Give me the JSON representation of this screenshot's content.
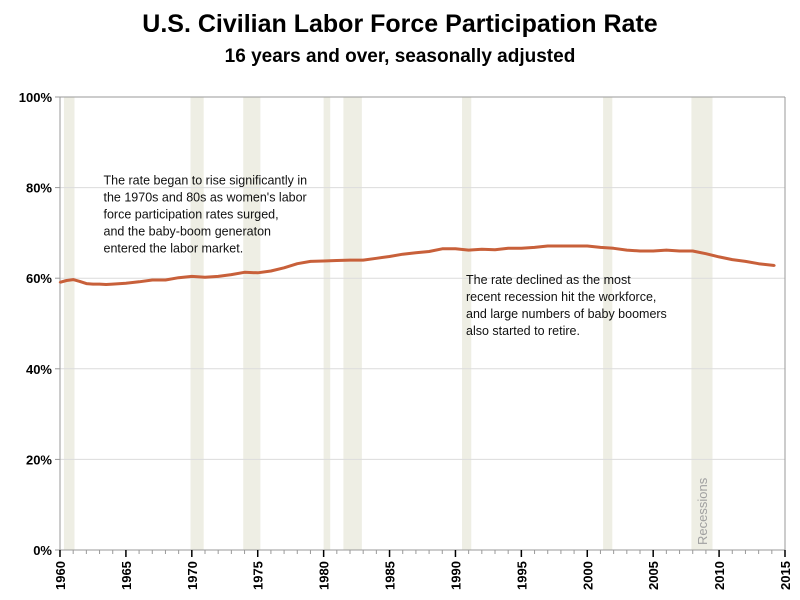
{
  "chart_data": {
    "type": "line",
    "title": "U.S. Civilian Labor Force Participation Rate",
    "subtitle": "16 years and over, seasonally adjusted",
    "xlabel": "",
    "ylabel": "",
    "xlim": [
      1960,
      2015
    ],
    "ylim": [
      0,
      100
    ],
    "grid": true,
    "y_ticks": [
      0,
      20,
      40,
      60,
      80,
      100
    ],
    "y_tick_labels": [
      "0%",
      "20%",
      "40%",
      "60%",
      "80%",
      "100%"
    ],
    "x_ticks": [
      1960,
      1965,
      1970,
      1975,
      1980,
      1985,
      1990,
      1995,
      2000,
      2005,
      2010,
      2015
    ],
    "x_tick_labels": [
      "1960",
      "1965",
      "1970",
      "1975",
      "1980",
      "1985",
      "1990",
      "1995",
      "2000",
      "2005",
      "2010",
      "2015"
    ],
    "line_color": "#c8603a",
    "recession_color": "#eeeee4",
    "series": [
      {
        "name": "Participation Rate",
        "x": [
          1960.0,
          1960.5,
          1961.0,
          1961.5,
          1962.0,
          1962.5,
          1963.0,
          1963.5,
          1964.0,
          1965.0,
          1966.0,
          1967.0,
          1968.0,
          1969.0,
          1970.0,
          1971.0,
          1972.0,
          1973.0,
          1974.0,
          1975.0,
          1976.0,
          1977.0,
          1978.0,
          1979.0,
          1980.0,
          1981.0,
          1982.0,
          1983.0,
          1984.0,
          1985.0,
          1986.0,
          1987.0,
          1988.0,
          1989.0,
          1990.0,
          1991.0,
          1992.0,
          1993.0,
          1994.0,
          1995.0,
          1996.0,
          1997.0,
          1998.0,
          1999.0,
          2000.0,
          2001.0,
          2002.0,
          2003.0,
          2004.0,
          2005.0,
          2006.0,
          2007.0,
          2008.0,
          2009.0,
          2010.0,
          2011.0,
          2012.0,
          2013.0,
          2014.2
        ],
        "y": [
          59.1,
          59.5,
          59.7,
          59.3,
          58.8,
          58.7,
          58.7,
          58.6,
          58.7,
          58.9,
          59.2,
          59.6,
          59.6,
          60.1,
          60.4,
          60.2,
          60.4,
          60.8,
          61.3,
          61.2,
          61.6,
          62.3,
          63.2,
          63.7,
          63.8,
          63.9,
          64.0,
          64.0,
          64.4,
          64.8,
          65.3,
          65.6,
          65.9,
          66.5,
          66.5,
          66.2,
          66.4,
          66.3,
          66.6,
          66.6,
          66.8,
          67.1,
          67.1,
          67.1,
          67.1,
          66.8,
          66.6,
          66.2,
          66.0,
          66.0,
          66.2,
          66.0,
          66.0,
          65.4,
          64.7,
          64.1,
          63.7,
          63.2,
          62.8
        ]
      }
    ],
    "recessions": [
      {
        "start": 1960.3,
        "end": 1961.1
      },
      {
        "start": 1969.9,
        "end": 1970.9
      },
      {
        "start": 1973.9,
        "end": 1975.2
      },
      {
        "start": 1980.0,
        "end": 1980.5
      },
      {
        "start": 1981.5,
        "end": 1982.9
      },
      {
        "start": 1990.5,
        "end": 1991.2
      },
      {
        "start": 2001.2,
        "end": 2001.9
      },
      {
        "start": 2007.9,
        "end": 2009.5
      }
    ],
    "recession_label": "Recessions",
    "annotations": [
      {
        "lines": [
          "The rate began to rise significantly in",
          "the 1970s and 80s as women's labor",
          "force participation rates surged,",
          "and the baby-boom generaton",
          "entered the labor market."
        ],
        "anchor_x": 1963.3,
        "anchor_y": 80.7
      },
      {
        "lines": [
          "The rate declined as the most",
          "recent recession hit the workforce,",
          "and large numbers of baby boomers",
          "also started to retire."
        ],
        "anchor_x": 1990.8,
        "anchor_y": 58.7
      }
    ]
  }
}
